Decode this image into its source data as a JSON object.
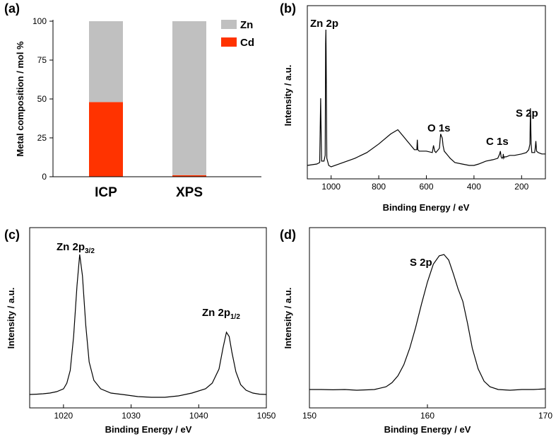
{
  "chart_data": [
    {
      "panel": "(a)",
      "type": "bar",
      "stacked": true,
      "categories": [
        "ICP",
        "XPS"
      ],
      "series": [
        {
          "name": "Cd",
          "values": [
            48,
            1
          ],
          "color": "#ff3300"
        },
        {
          "name": "Zn",
          "values": [
            52,
            99
          ],
          "color": "#c0c0c0"
        }
      ],
      "ylabel": "Metal composition / mol %",
      "xlabel": "",
      "ylim": [
        0,
        100
      ],
      "yticks": [
        0,
        25,
        50,
        75,
        100
      ],
      "legend": "top-right",
      "legend_entries": [
        "Zn",
        "Cd"
      ],
      "grid": false
    },
    {
      "panel": "(b)",
      "type": "line",
      "xlabel": "Binding Energy / eV",
      "ylabel": "Intensity / a.u.",
      "xlim": [
        1100,
        100
      ],
      "xticks": [
        1000,
        800,
        600,
        400,
        200
      ],
      "reversed_x": true,
      "series": [
        {
          "x": [
            1100,
            1080,
            1060,
            1048,
            1045,
            1044,
            1043,
            1040,
            1030,
            1025,
            1023,
            1022,
            1021,
            1018,
            1010,
            1000,
            950,
            900,
            850,
            800,
            750,
            720,
            700,
            680,
            650,
            640,
            638,
            636,
            630,
            620,
            600,
            575,
            570,
            565,
            560,
            545,
            540,
            533,
            530,
            525,
            515,
            500,
            480,
            450,
            420,
            400,
            380,
            350,
            320,
            300,
            292,
            289,
            286,
            282,
            278,
            277,
            275,
            272,
            265,
            250,
            230,
            200,
            180,
            170,
            165,
            163,
            162,
            160,
            157,
            150,
            145,
            142,
            140,
            137,
            130,
            115,
            100
          ],
          "y": [
            5,
            5.5,
            6,
            7,
            40,
            52,
            40,
            8,
            8,
            12,
            90,
            100,
            85,
            10,
            5,
            4,
            7,
            10,
            14,
            20,
            27,
            30,
            26,
            22,
            16,
            16,
            23,
            16,
            15,
            15,
            15,
            14,
            19,
            15,
            14,
            17,
            27,
            24,
            19,
            15,
            13,
            10,
            7,
            6,
            5,
            5,
            6,
            8,
            9,
            10,
            13,
            15,
            11,
            10,
            11,
            13,
            10,
            11,
            11,
            12,
            12,
            13,
            14,
            16,
            20,
            45,
            38,
            20,
            14,
            14,
            14,
            18,
            22,
            15,
            14,
            13,
            13
          ]
        }
      ],
      "annotations": [
        "Zn 2p",
        "O 1s",
        "C 1s",
        "S 2p"
      ],
      "grid": false
    },
    {
      "panel": "(c)",
      "type": "line",
      "xlabel": "Binding Energy / eV",
      "ylabel": "Intensity / a.u.",
      "xlim": [
        1015,
        1050
      ],
      "xticks": [
        1020,
        1030,
        1040,
        1050
      ],
      "series": [
        {
          "x": [
            1015,
            1016,
            1017,
            1018,
            1019,
            1020,
            1020.5,
            1021,
            1021.5,
            1022,
            1022.4,
            1022.8,
            1023.3,
            1023.8,
            1024.5,
            1025.5,
            1027,
            1029,
            1031,
            1033,
            1035,
            1037,
            1039,
            1041,
            1042,
            1043,
            1043.6,
            1044.1,
            1044.5,
            1044.9,
            1045.5,
            1046.2,
            1047,
            1048,
            1049,
            1050
          ],
          "y": [
            1,
            1.2,
            1.5,
            2,
            3,
            5,
            9,
            18,
            42,
            78,
            100,
            85,
            50,
            24,
            11,
            5,
            2,
            0.8,
            -0.5,
            -1,
            -1,
            0,
            2,
            5,
            9,
            19,
            34,
            45,
            42,
            31,
            17,
            8,
            4,
            2,
            1.2,
            1
          ]
        }
      ],
      "annotations": [
        {
          "main": "Zn 2p",
          "sub": "3/2"
        },
        {
          "main": "Zn 2p",
          "sub": "1/2"
        }
      ],
      "grid": false
    },
    {
      "panel": "(d)",
      "type": "line",
      "xlabel": "Binding Energy / eV",
      "ylabel": "Intensity / a.u.",
      "xlim": [
        150,
        170
      ],
      "xticks": [
        150,
        160,
        170
      ],
      "series": [
        {
          "x": [
            150,
            151,
            152,
            153,
            154,
            155,
            155.5,
            156,
            156.5,
            157,
            157.5,
            158,
            158.5,
            159,
            159.5,
            160,
            160.5,
            161,
            161.4,
            161.8,
            162.2,
            162.6,
            163,
            163.4,
            163.8,
            164.3,
            164.8,
            165.3,
            166,
            167,
            168,
            169,
            170
          ],
          "y": [
            2,
            2,
            1.8,
            2,
            1.5,
            1.8,
            2,
            3,
            4,
            7,
            12,
            20,
            32,
            47,
            64,
            80,
            93,
            99,
            100,
            96,
            86,
            75,
            66,
            50,
            32,
            17,
            8,
            4,
            2,
            1.5,
            2,
            2,
            2.5
          ]
        }
      ],
      "annotations": [
        "S 2p"
      ],
      "grid": false
    }
  ]
}
